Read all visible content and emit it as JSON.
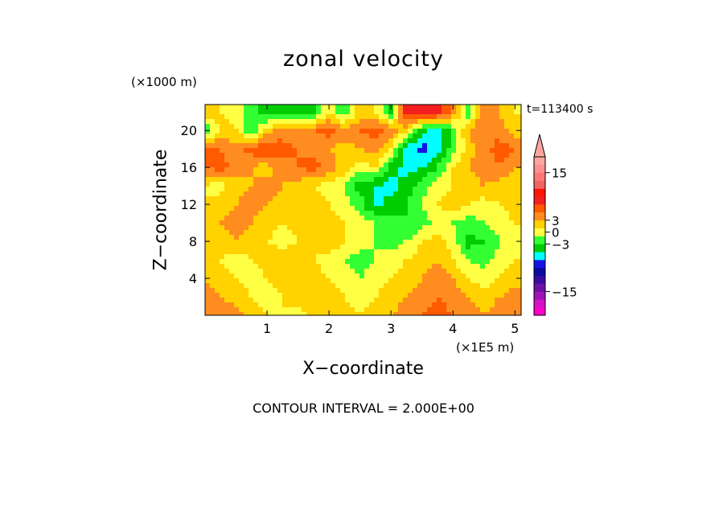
{
  "chart_data": {
    "type": "heatmap",
    "title": "zonal velocity",
    "xlabel": "X−coordinate",
    "ylabel": "Z−coordinate",
    "x_unit": "(×1E5 m)",
    "y_unit": "(×1000 m)",
    "time_label": "t=113400 s",
    "footer": "CONTOUR INTERVAL = 2.000E+00",
    "xlim": [
      0,
      5.1
    ],
    "ylim": [
      0,
      22.8
    ],
    "x_ticks": [
      1,
      2,
      3,
      4,
      5
    ],
    "y_ticks": [
      4,
      8,
      12,
      16,
      20
    ],
    "colorbar": {
      "levels": [
        -19,
        -17,
        -15,
        -13,
        -11,
        -9,
        -7,
        -5,
        -3,
        -1,
        1,
        3,
        5,
        7,
        9,
        11,
        13,
        15,
        17,
        19
      ],
      "tick_labels": [
        "15",
        "3",
        "0",
        "−3",
        "−15"
      ],
      "tick_values": [
        15,
        3,
        0,
        -3,
        -15
      ],
      "extend": "max"
    },
    "z_grid": {
      "x": [
        0.0,
        0.25,
        0.5,
        0.75,
        1.0,
        1.25,
        1.5,
        1.75,
        2.0,
        2.25,
        2.5,
        2.75,
        3.0,
        3.25,
        3.5,
        3.75,
        4.0,
        4.25,
        4.5,
        4.75,
        5.0
      ],
      "z": [
        0,
        2,
        4,
        6,
        8,
        10,
        12,
        14,
        16,
        18,
        20,
        22
      ],
      "values": [
        [
          3,
          5,
          4,
          2,
          1,
          1,
          0,
          2,
          3,
          2,
          1,
          2,
          3,
          4,
          5,
          6,
          5,
          4,
          3,
          4,
          5
        ],
        [
          4,
          3,
          2,
          1,
          0,
          1,
          2,
          3,
          2,
          1,
          0,
          1,
          2,
          3,
          4,
          5,
          4,
          3,
          2,
          3,
          4
        ],
        [
          3,
          2,
          1,
          0,
          1,
          2,
          3,
          2,
          1,
          0,
          -1,
          0,
          1,
          2,
          3,
          4,
          3,
          1,
          0,
          1,
          2
        ],
        [
          2,
          1,
          0,
          1,
          2,
          3,
          2,
          1,
          0,
          -1,
          -2,
          -1,
          0,
          1,
          2,
          3,
          1,
          -1,
          -2,
          0,
          1
        ],
        [
          1,
          2,
          3,
          2,
          1,
          0,
          1,
          2,
          3,
          1,
          0,
          -1,
          -2,
          -1,
          1,
          2,
          0,
          -4,
          -3,
          -1,
          0
        ],
        [
          2,
          3,
          4,
          3,
          2,
          1,
          2,
          3,
          2,
          1,
          0,
          -1,
          -2,
          -3,
          -2,
          0,
          -1,
          -2,
          -1,
          0,
          1
        ],
        [
          1,
          2,
          3,
          4,
          3,
          2,
          1,
          2,
          1,
          0,
          -2,
          -6,
          -4,
          -3,
          -1,
          1,
          2,
          1,
          0,
          1,
          2
        ],
        [
          1,
          0,
          2,
          3,
          4,
          3,
          2,
          1,
          0,
          -1,
          -4,
          -5,
          -6,
          -4,
          -2,
          0,
          1,
          2,
          3,
          2,
          1
        ],
        [
          5,
          6,
          4,
          3,
          2,
          4,
          5,
          6,
          4,
          2,
          0,
          1,
          -4,
          -6,
          -5,
          -3,
          1,
          3,
          4,
          5,
          3
        ],
        [
          6,
          5,
          4,
          6,
          7,
          6,
          5,
          4,
          3,
          2,
          3,
          4,
          1,
          -6,
          -8,
          -6,
          -2,
          2,
          4,
          6,
          5
        ],
        [
          -4,
          2,
          1,
          -3,
          2,
          4,
          3,
          5,
          6,
          4,
          5,
          6,
          4,
          2,
          -4,
          -6,
          -2,
          3,
          5,
          4,
          2
        ],
        [
          3,
          1,
          0,
          -2,
          -4,
          -5,
          -3,
          -4,
          1,
          -3,
          2,
          1,
          -4,
          8,
          9,
          9,
          4,
          -3,
          5,
          3,
          1
        ]
      ]
    }
  }
}
